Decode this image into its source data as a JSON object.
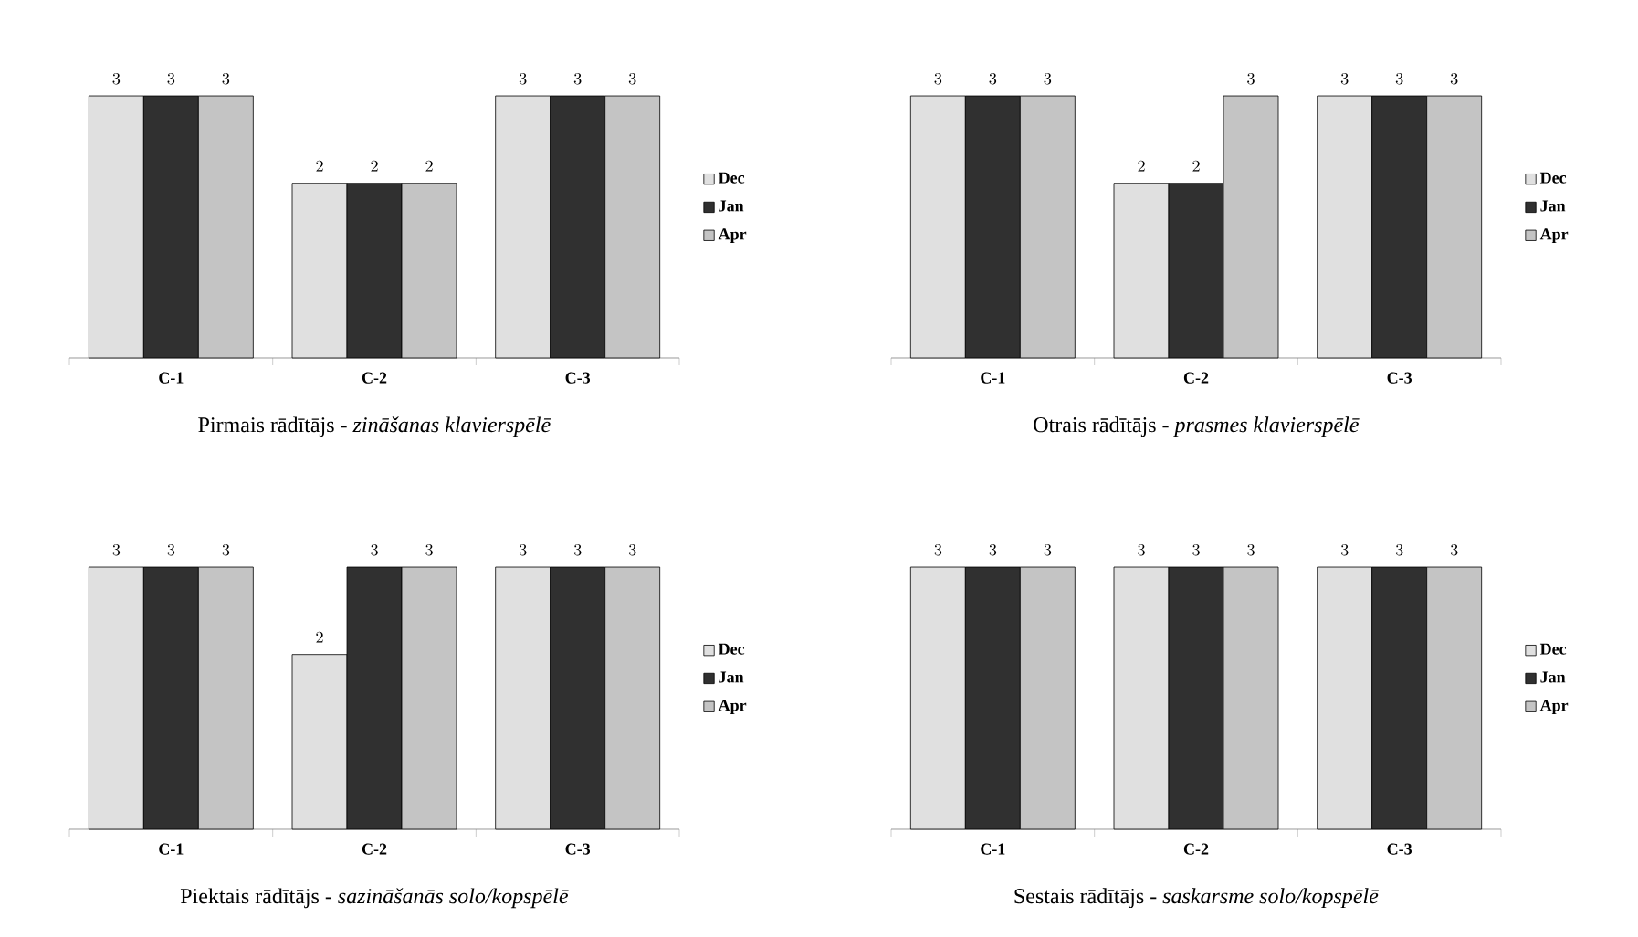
{
  "chart_data": [
    {
      "type": "bar",
      "title": "Pirmais rādītājs - *zināšanas klavierspēlē*",
      "categories": [
        "C-1",
        "C-2",
        "C-3"
      ],
      "data_labels": true,
      "legend": "right",
      "series": [
        {
          "name": "Dec",
          "color": "#e0e0e0",
          "values": [
            3,
            2,
            3
          ]
        },
        {
          "name": "Jan",
          "color": "#303030",
          "values": [
            3,
            2,
            3
          ]
        },
        {
          "name": "Apr",
          "color": "#c4c4c4",
          "values": [
            3,
            2,
            3
          ]
        }
      ]
    },
    {
      "type": "bar",
      "title": "Otrais rādītājs - *prasmes klavierspēlē*",
      "categories": [
        "C-1",
        "C-2",
        "C-3"
      ],
      "data_labels": true,
      "legend": "right",
      "series": [
        {
          "name": "Dec",
          "color": "#e0e0e0",
          "values": [
            3,
            2,
            3
          ]
        },
        {
          "name": "Jan",
          "color": "#303030",
          "values": [
            3,
            2,
            3
          ]
        },
        {
          "name": "Apr",
          "color": "#c4c4c4",
          "values": [
            3,
            3,
            3
          ]
        }
      ]
    },
    {
      "type": "bar",
      "title": "Piektais rādītājs - *sazināšanās solo/kopspēlē*",
      "categories": [
        "C-1",
        "C-2",
        "C-3"
      ],
      "data_labels": true,
      "legend": "right",
      "series": [
        {
          "name": "Dec",
          "color": "#e0e0e0",
          "values": [
            3,
            2,
            3
          ]
        },
        {
          "name": "Jan",
          "color": "#303030",
          "values": [
            3,
            3,
            3
          ]
        },
        {
          "name": "Apr",
          "color": "#c4c4c4",
          "values": [
            3,
            3,
            3
          ]
        }
      ]
    },
    {
      "type": "bar",
      "title": "Sestais rādītājs - *saskarsme solo/kopspēlē*",
      "categories": [
        "C-1",
        "C-2",
        "C-3"
      ],
      "data_labels": true,
      "legend": "right",
      "series": [
        {
          "name": "Dec",
          "color": "#e0e0e0",
          "values": [
            3,
            3,
            3
          ]
        },
        {
          "name": "Jan",
          "color": "#303030",
          "values": [
            3,
            3,
            3
          ]
        },
        {
          "name": "Apr",
          "color": "#c4c4c4",
          "values": [
            3,
            3,
            3
          ]
        }
      ]
    }
  ]
}
